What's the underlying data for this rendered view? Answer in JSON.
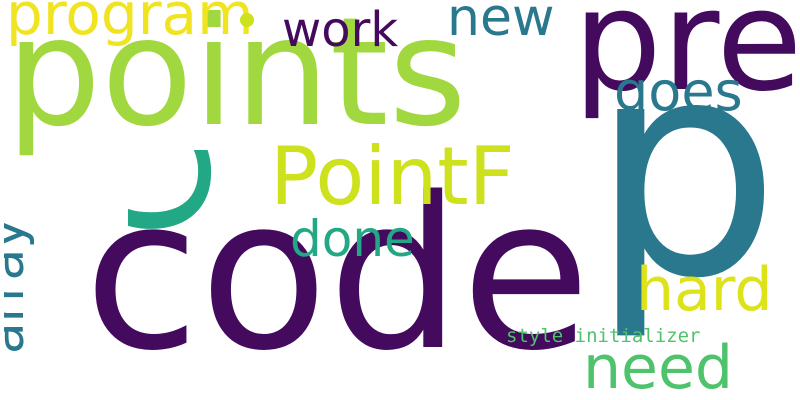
{
  "words": [
    {
      "text": "points",
      "color": "#a2d83f",
      "orientation": "horizontal"
    },
    {
      "text": "code",
      "color": "#440a5e",
      "orientation": "horizontal"
    },
    {
      "text": "p",
      "color": "#2a788e",
      "orientation": "horizontal"
    },
    {
      "text": "pre",
      "color": "#440a5e",
      "orientation": "horizontal"
    },
    {
      "text": "C",
      "color": "#22a884",
      "orientation": "vertical"
    },
    {
      "text": "PointF",
      "color": "#cde11d",
      "orientation": "horizontal"
    },
    {
      "text": "program",
      "color": "#f0e421",
      "orientation": "horizontal"
    },
    {
      "text": "work",
      "color": "#440a5e",
      "orientation": "horizontal"
    },
    {
      "text": "new",
      "color": "#2a788e",
      "orientation": "horizontal"
    },
    {
      "text": "goes",
      "color": "#2a788e",
      "orientation": "horizontal"
    },
    {
      "text": "done",
      "color": "#22a884",
      "orientation": "horizontal"
    },
    {
      "text": "hard",
      "color": "#dde318",
      "orientation": "horizontal"
    },
    {
      "text": "array",
      "color": "#2a788e",
      "orientation": "vertical"
    },
    {
      "text": "need",
      "color": "#4ec36b",
      "orientation": "horizontal"
    },
    {
      "text": "style initializer",
      "color": "#4ec36b",
      "orientation": "horizontal"
    }
  ],
  "dot": {
    "color": "#cde11d"
  }
}
